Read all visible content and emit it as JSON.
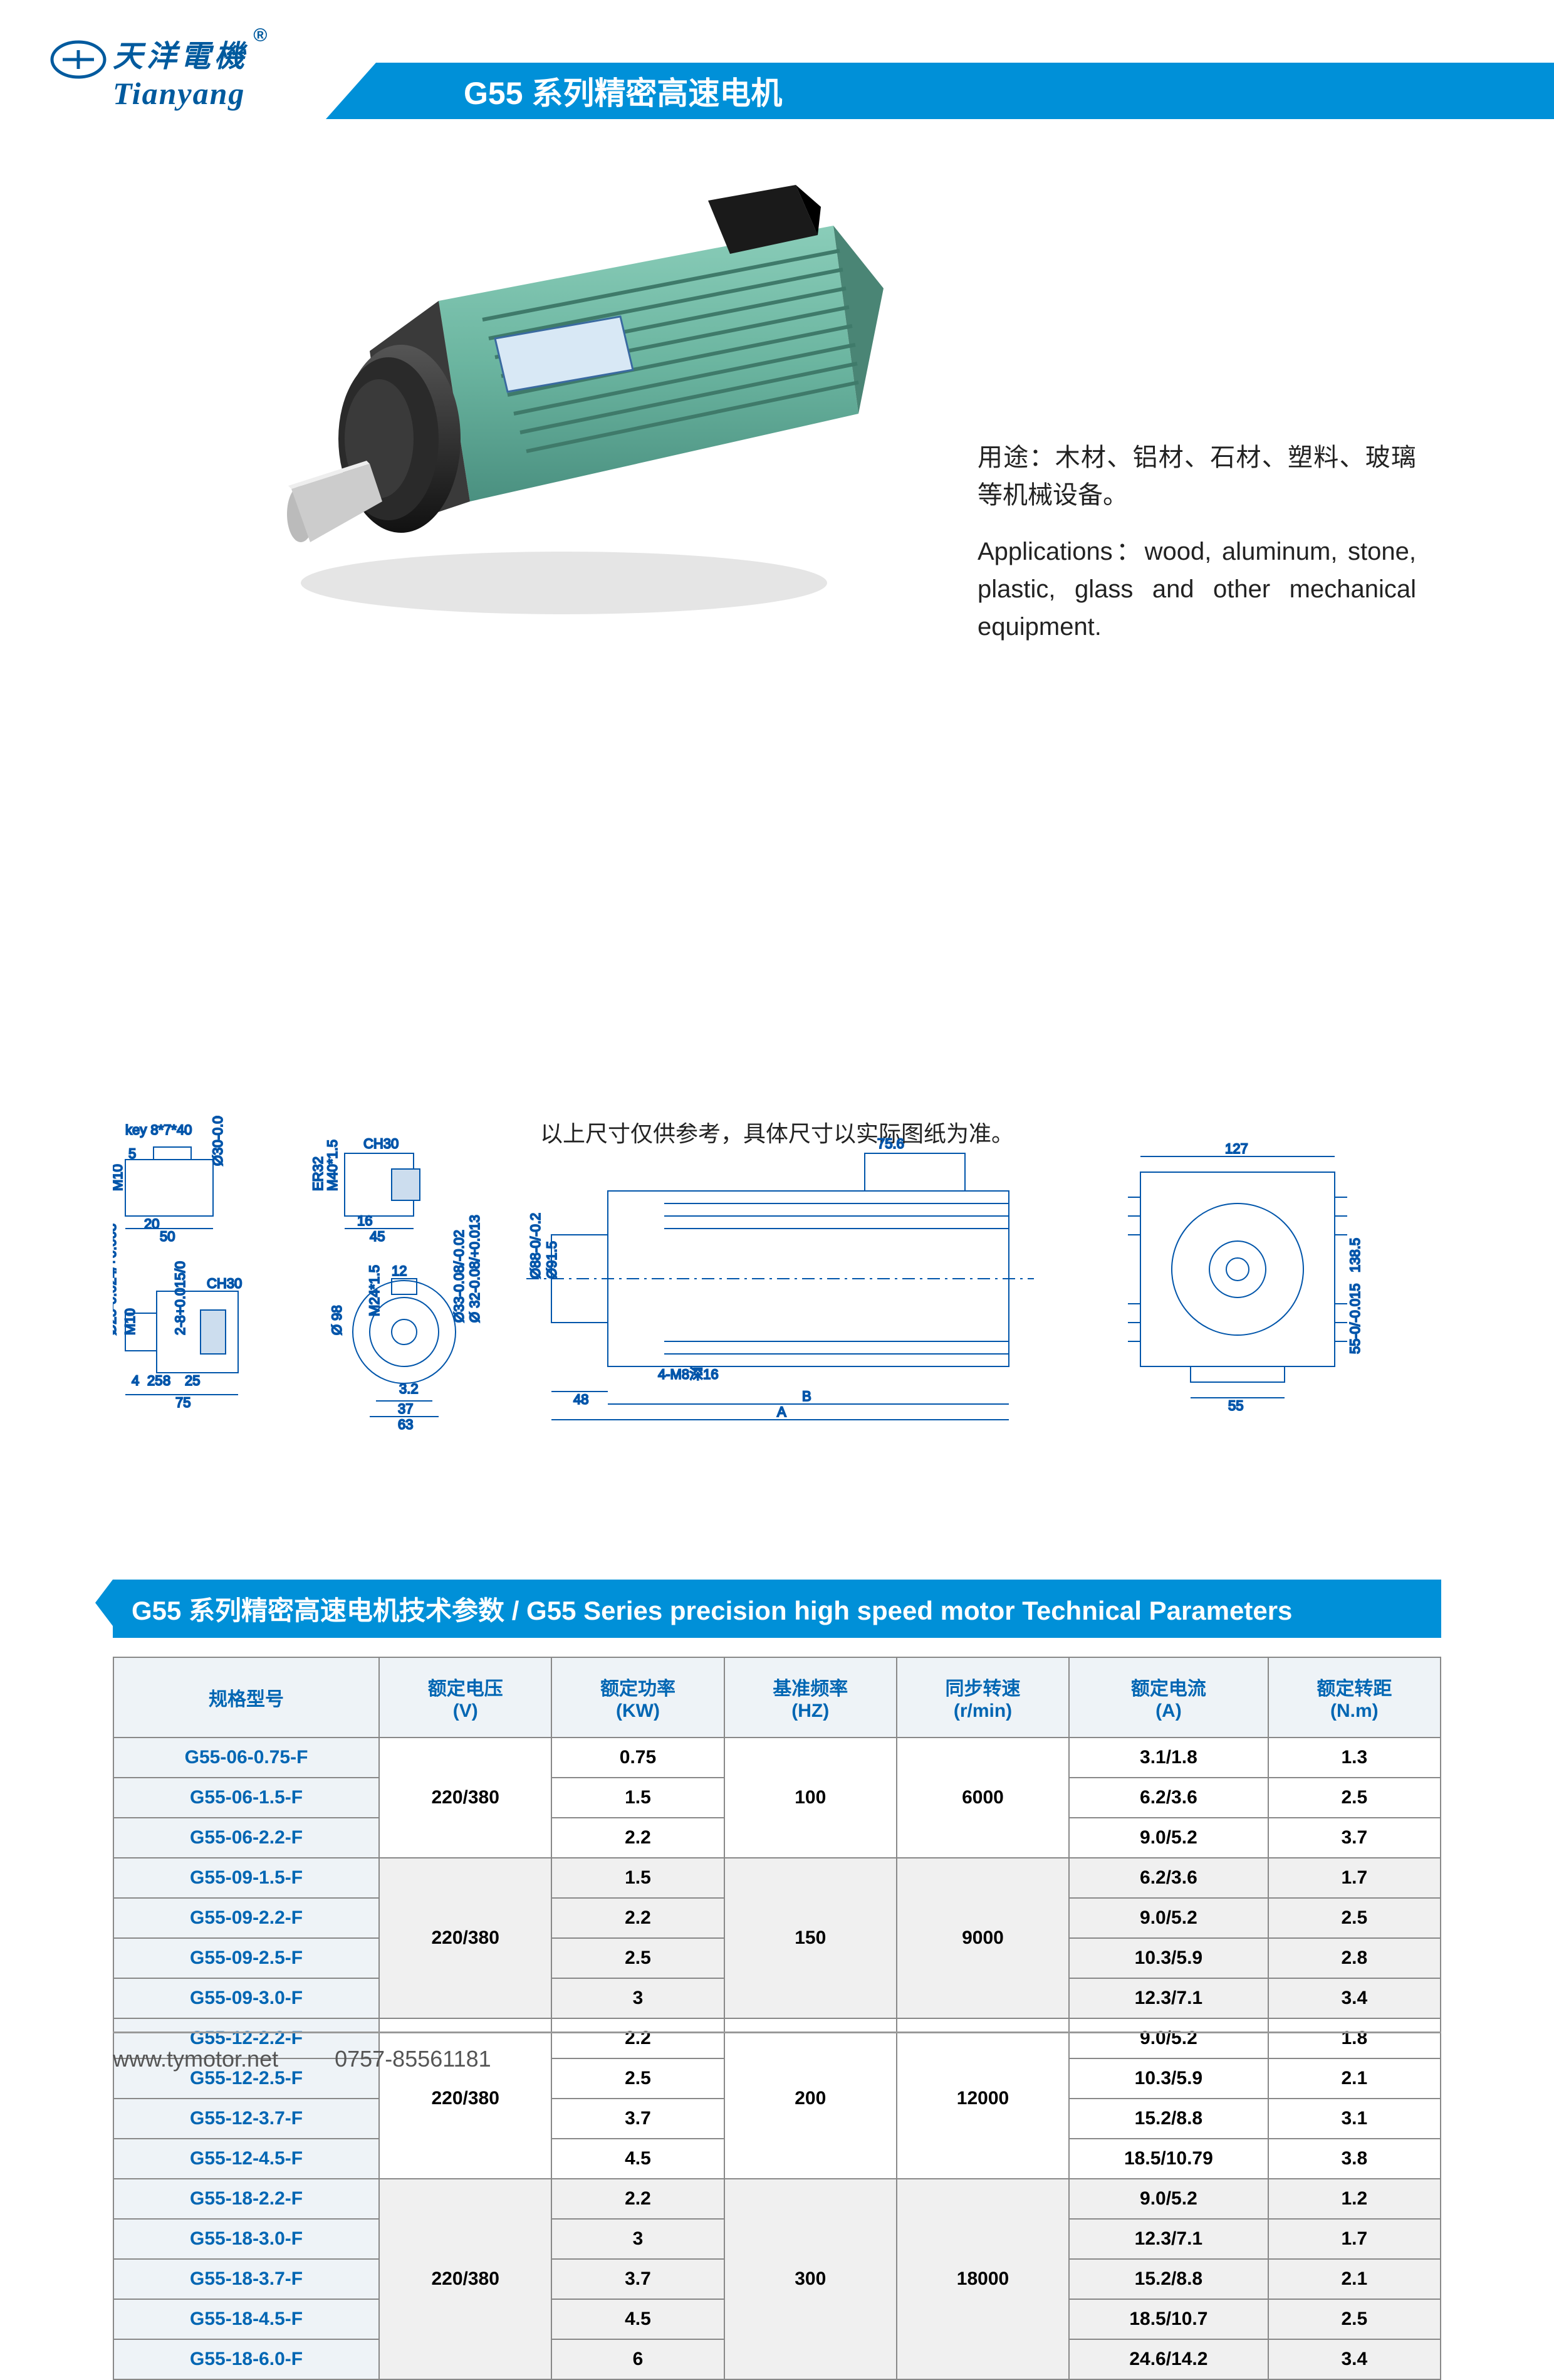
{
  "header": {
    "logo_cn": "天洋電機",
    "logo_en": "Tianyang",
    "logo_r": "®",
    "title": "G55 系列精密高速电机"
  },
  "product": {
    "image_colors": {
      "body": "#6bb5a0",
      "front": "#2a2a2a",
      "shaft": "#cccccc",
      "top_box": "#222222"
    },
    "desc_cn": "用途：木材、铝材、石材、塑料、玻璃等机械设备。",
    "desc_en": "Applications：wood, aluminum, stone, plastic, glass and other mechanical equipment."
  },
  "diagram": {
    "key_label": "key 8*7*40",
    "dims": [
      "Ø30",
      "M10",
      "20",
      "50",
      "CH30",
      "M40*1.5",
      "ER32",
      "16",
      "45",
      "Ø25",
      "M10",
      "2-8",
      "CH30",
      "Ø98",
      "4",
      "25",
      "8",
      "25",
      "75",
      "12",
      "M24*1.5",
      "Ø33",
      "Ø32",
      "3.2",
      "37",
      "63",
      "Ø88",
      "Ø91.5",
      "75.6",
      "48",
      "4-M8深16",
      "B",
      "A",
      "127",
      "138.5",
      "55",
      "55"
    ],
    "note": "以上尺寸仅供参考，具体尺寸以实际图纸为准。"
  },
  "params": {
    "header": "G55 系列精密高速电机技术参数 / G55 Series precision high speed motor Technical Parameters",
    "columns": [
      "规格型号",
      "额定电压\n(V)",
      "额定功率\n(KW)",
      "基准频率\n(HZ)",
      "同步转速\n(r/min)",
      "额定电流\n(A)",
      "额定转距\n(N.m)"
    ],
    "groups": [
      {
        "voltage": "220/380",
        "hz": "100",
        "rpm": "6000",
        "rows": [
          {
            "model": "G55-06-0.75-F",
            "kw": "0.75",
            "a": "3.1/1.8",
            "nm": "1.3"
          },
          {
            "model": "G55-06-1.5-F",
            "kw": "1.5",
            "a": "6.2/3.6",
            "nm": "2.5"
          },
          {
            "model": "G55-06-2.2-F",
            "kw": "2.2",
            "a": "9.0/5.2",
            "nm": "3.7"
          }
        ]
      },
      {
        "voltage": "220/380",
        "hz": "150",
        "rpm": "9000",
        "rows": [
          {
            "model": "G55-09-1.5-F",
            "kw": "1.5",
            "a": "6.2/3.6",
            "nm": "1.7"
          },
          {
            "model": "G55-09-2.2-F",
            "kw": "2.2",
            "a": "9.0/5.2",
            "nm": "2.5"
          },
          {
            "model": "G55-09-2.5-F",
            "kw": "2.5",
            "a": "10.3/5.9",
            "nm": "2.8"
          },
          {
            "model": "G55-09-3.0-F",
            "kw": "3",
            "a": "12.3/7.1",
            "nm": "3.4"
          }
        ]
      },
      {
        "voltage": "220/380",
        "hz": "200",
        "rpm": "12000",
        "rows": [
          {
            "model": "G55-12-2.2-F",
            "kw": "2.2",
            "a": "9.0/5.2",
            "nm": "1.8"
          },
          {
            "model": "G55-12-2.5-F",
            "kw": "2.5",
            "a": "10.3/5.9",
            "nm": "2.1"
          },
          {
            "model": "G55-12-3.7-F",
            "kw": "3.7",
            "a": "15.2/8.8",
            "nm": "3.1"
          },
          {
            "model": "G55-12-4.5-F",
            "kw": "4.5",
            "a": "18.5/10.79",
            "nm": "3.8"
          }
        ]
      },
      {
        "voltage": "220/380",
        "hz": "300",
        "rpm": "18000",
        "rows": [
          {
            "model": "G55-18-2.2-F",
            "kw": "2.2",
            "a": "9.0/5.2",
            "nm": "1.2"
          },
          {
            "model": "G55-18-3.0-F",
            "kw": "3",
            "a": "12.3/7.1",
            "nm": "1.7"
          },
          {
            "model": "G55-18-3.7-F",
            "kw": "3.7",
            "a": "15.2/8.8",
            "nm": "2.1"
          },
          {
            "model": "G55-18-4.5-F",
            "kw": "4.5",
            "a": "18.5/10.7",
            "nm": "2.5"
          },
          {
            "model": "G55-18-6.0-F",
            "kw": "6",
            "a": "24.6/14.2",
            "nm": "3.4"
          }
        ]
      }
    ]
  },
  "footer": {
    "url": "www.tymotor.net",
    "phone": "0757-85561181"
  }
}
